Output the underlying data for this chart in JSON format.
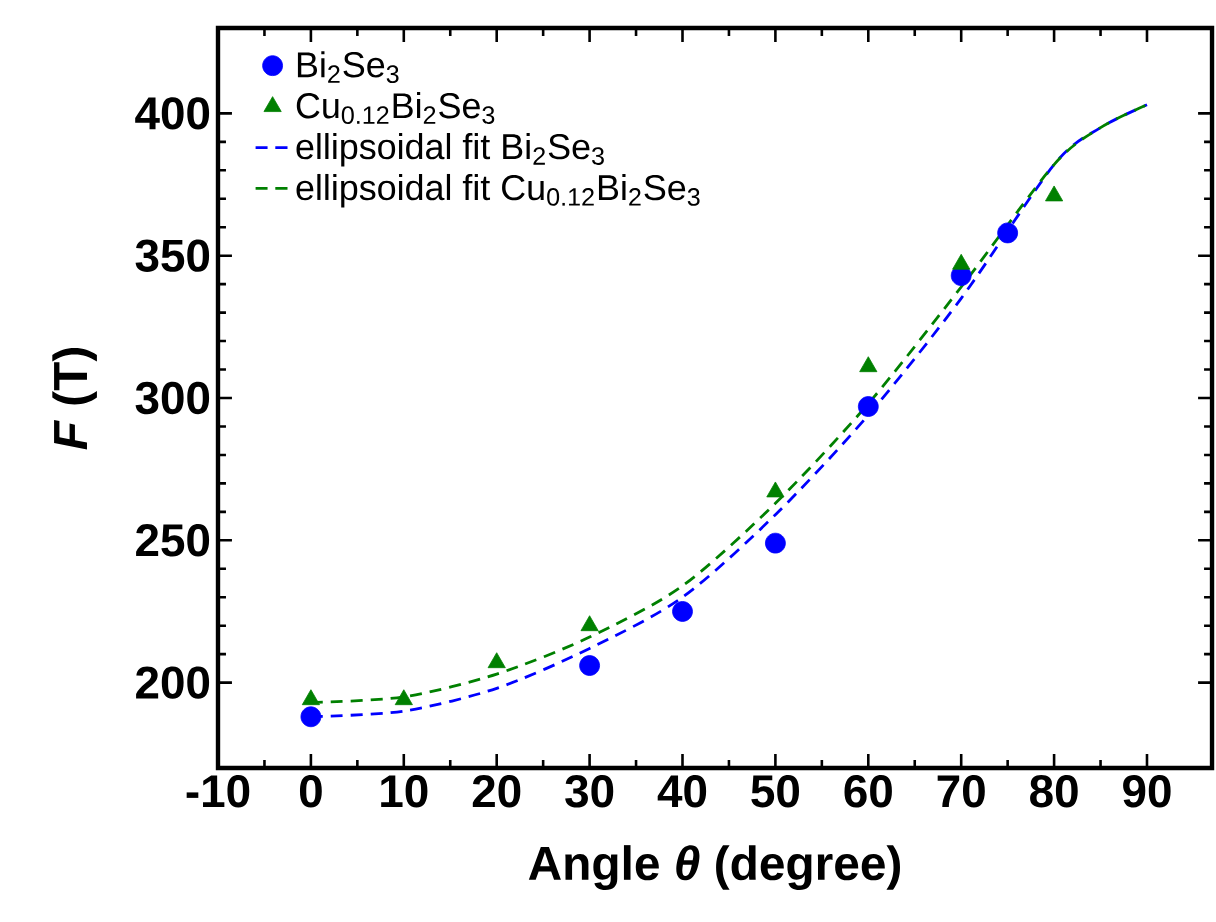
{
  "chart_data": {
    "type": "scatter",
    "xlabel": "Angle *θ* (degree)",
    "ylabel": "*F* (T)",
    "xlim": [
      -10,
      97
    ],
    "ylim": [
      170,
      430
    ],
    "xticks": [
      -10,
      0,
      10,
      20,
      30,
      40,
      50,
      60,
      70,
      80,
      90
    ],
    "yticks": [
      200,
      250,
      300,
      350,
      400
    ],
    "legend": "top left",
    "grid": false,
    "series": [
      {
        "name": "Bi$_{2}$Se$_{3}$",
        "marker": "circle",
        "color": "#0000ff",
        "x": [
          0,
          30,
          40,
          50,
          60,
          70,
          75
        ],
        "values": [
          188,
          206,
          225,
          249,
          297,
          343,
          358
        ]
      },
      {
        "name": "Cu$_{0.12}$Bi$_{2}$Se$_{3}$",
        "type": "scatter",
        "marker": "triangle",
        "color": "#008000",
        "x": [
          0,
          10,
          20,
          30,
          50,
          60,
          70,
          80
        ],
        "values": [
          194,
          194,
          207,
          220,
          267,
          311,
          347,
          371
        ]
      },
      {
        "name": "ellipsoidal fit Bi$_{2}$Se$_{3}$",
        "type": "line",
        "marker": "none",
        "line_style": "dashed",
        "color": "#0000ff",
        "x": [
          0,
          10,
          20,
          30,
          40,
          50,
          60,
          70,
          80,
          85,
          90
        ],
        "values": [
          188,
          190,
          198,
          212,
          230,
          259,
          294,
          335,
          382,
          395,
          403
        ]
      },
      {
        "name": "ellipsoidal fit Cu$_{0.12}$Bi$_{2}$Se$_{3}$",
        "type": "line",
        "marker": "none",
        "line_style": "dashed",
        "color": "#008000",
        "x": [
          0,
          10,
          20,
          30,
          40,
          50,
          60,
          70,
          80,
          85,
          90
        ],
        "values": [
          193,
          195,
          203,
          216,
          234,
          263,
          298,
          339,
          382,
          395,
          403
        ]
      }
    ]
  }
}
